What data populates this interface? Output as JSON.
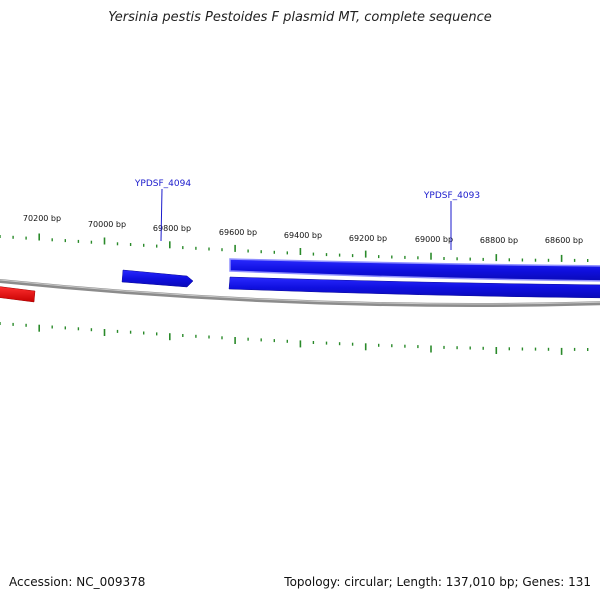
{
  "title": "Yersinia pestis Pestoides F plasmid MT, complete sequence",
  "footer": {
    "accession": "Accession: NC_009378",
    "summary": "Topology: circular; Length: 137,010 bp; Genes: 131"
  },
  "ruler": {
    "labels": [
      "70200 bp",
      "70000 bp",
      "69800 bp",
      "69600 bp",
      "69400 bp",
      "69200 bp",
      "69000 bp",
      "68800 bp",
      "68600 bp"
    ]
  },
  "genes": [
    {
      "label": "YPDSF_4094"
    },
    {
      "label": "YPDSF_4093"
    }
  ],
  "colors": {
    "forward_gene": "#1414e6",
    "reverse_gene": "#e01010",
    "backbone": "#8c8c8c",
    "tick": "#2a8a2a",
    "gene_label": "#1a1acc"
  }
}
